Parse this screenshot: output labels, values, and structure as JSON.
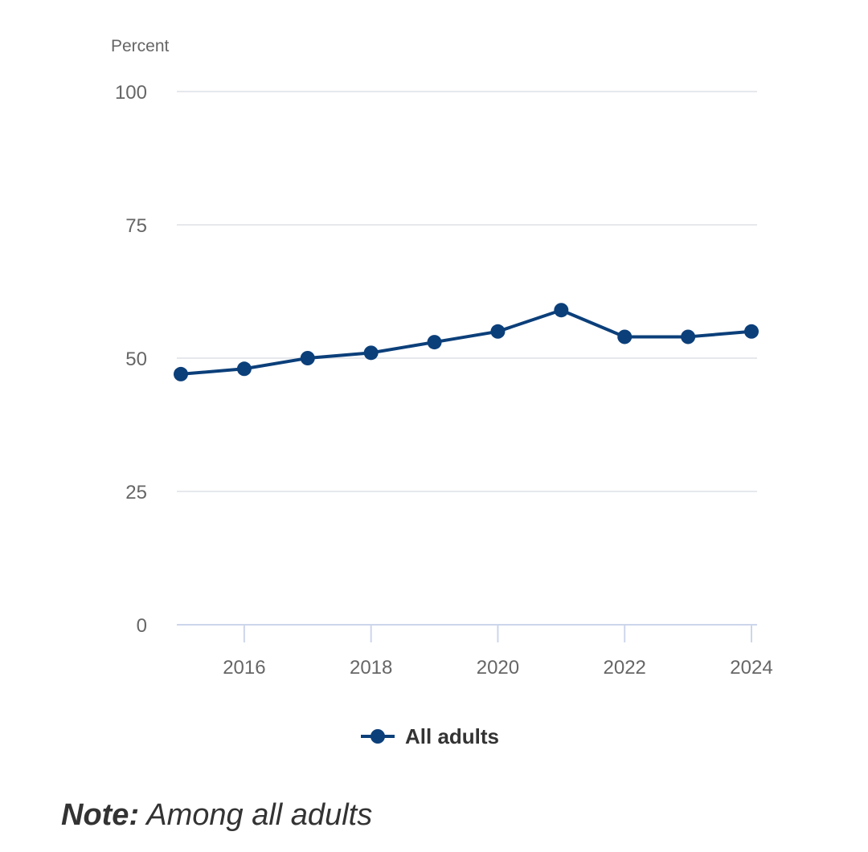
{
  "chart_data": {
    "type": "line",
    "title": "",
    "ylabel": "Percent",
    "xlabel": "",
    "ylim": [
      0,
      100
    ],
    "yticks": [
      0,
      25,
      50,
      75,
      100
    ],
    "xlim": [
      2015,
      2024
    ],
    "xticks": [
      2016,
      2018,
      2020,
      2022,
      2024
    ],
    "grid": true,
    "legend_position": "bottom-center",
    "series": [
      {
        "name": "All adults",
        "color": "#0b3f7a",
        "x": [
          2015,
          2016,
          2017,
          2018,
          2019,
          2020,
          2021,
          2022,
          2023,
          2024
        ],
        "values": [
          47,
          48,
          50,
          51,
          53,
          55,
          59,
          54,
          54,
          55
        ]
      }
    ]
  },
  "note": {
    "label": "Note:",
    "text": "Among all adults"
  }
}
